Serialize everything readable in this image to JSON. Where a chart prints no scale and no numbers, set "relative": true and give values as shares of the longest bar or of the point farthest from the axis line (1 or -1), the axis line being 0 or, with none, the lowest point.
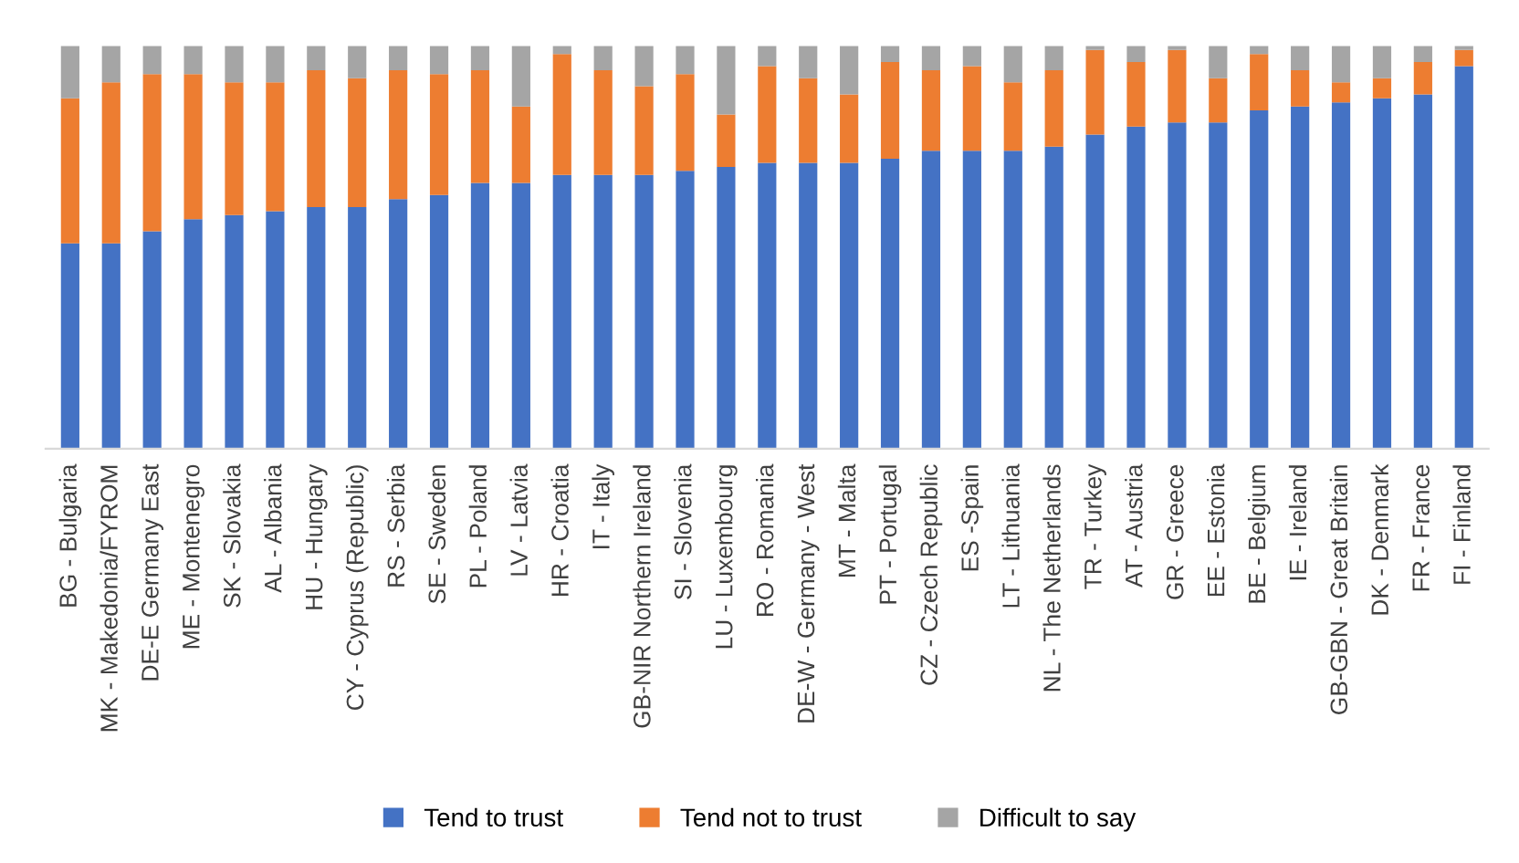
{
  "chart_data": {
    "type": "bar",
    "stacked": true,
    "relative": true,
    "legend": "bottom",
    "categories": [
      "BG - Bulgaria",
      "MK - Makedonia/FYROM",
      "DE-E Germany East",
      "ME - Montenegro",
      "SK - Slovakia",
      "AL - Albania",
      "HU - Hungary",
      "CY - Cyprus (Republic)",
      "RS - Serbia",
      "SE - Sweden",
      "PL - Poland",
      "LV - Latvia",
      "HR - Croatia",
      "IT - Italy",
      "GB-NIR Northern Ireland",
      "SI - Slovenia",
      "LU - Luxembourg",
      "RO - Romania",
      "DE-W - Germany - West",
      "MT - Malta",
      "PT - Portugal",
      "CZ - Czech Republic",
      "ES -Spain",
      "LT - Lithuania",
      "NL - The Netherlands",
      "TR - Turkey",
      "AT - Austria",
      "GR - Greece",
      "EE - Estonia",
      "BE - Belgium",
      "IE - Ireland",
      "GB-GBN - Great Britain",
      "DK - Denmark",
      "FR - France",
      "FI - Finland"
    ],
    "series": [
      {
        "name": "Tend to trust",
        "color": "#4472c4",
        "values": [
          0.51,
          0.51,
          0.54,
          0.57,
          0.58,
          0.59,
          0.6,
          0.6,
          0.62,
          0.63,
          0.66,
          0.66,
          0.68,
          0.68,
          0.68,
          0.69,
          0.7,
          0.71,
          0.71,
          0.71,
          0.72,
          0.74,
          0.74,
          0.74,
          0.75,
          0.78,
          0.8,
          0.81,
          0.81,
          0.84,
          0.85,
          0.86,
          0.87,
          0.88,
          0.95
        ]
      },
      {
        "name": "Tend not to trust",
        "color": "#ed7d31",
        "values": [
          0.36,
          0.4,
          0.39,
          0.36,
          0.33,
          0.32,
          0.34,
          0.32,
          0.32,
          0.3,
          0.28,
          0.19,
          0.3,
          0.26,
          0.22,
          0.24,
          0.13,
          0.24,
          0.21,
          0.17,
          0.24,
          0.2,
          0.21,
          0.17,
          0.19,
          0.21,
          0.16,
          0.18,
          0.11,
          0.14,
          0.09,
          0.05,
          0.05,
          0.08,
          0.04
        ]
      },
      {
        "name": "Difficult to say",
        "color": "#a5a5a5",
        "values": [
          0.13,
          0.09,
          0.07,
          0.07,
          0.09,
          0.09,
          0.06,
          0.08,
          0.06,
          0.07,
          0.06,
          0.15,
          0.02,
          0.06,
          0.1,
          0.07,
          0.17,
          0.05,
          0.08,
          0.12,
          0.04,
          0.06,
          0.05,
          0.09,
          0.06,
          0.01,
          0.04,
          0.01,
          0.08,
          0.02,
          0.06,
          0.09,
          0.08,
          0.04,
          0.01
        ]
      }
    ]
  }
}
